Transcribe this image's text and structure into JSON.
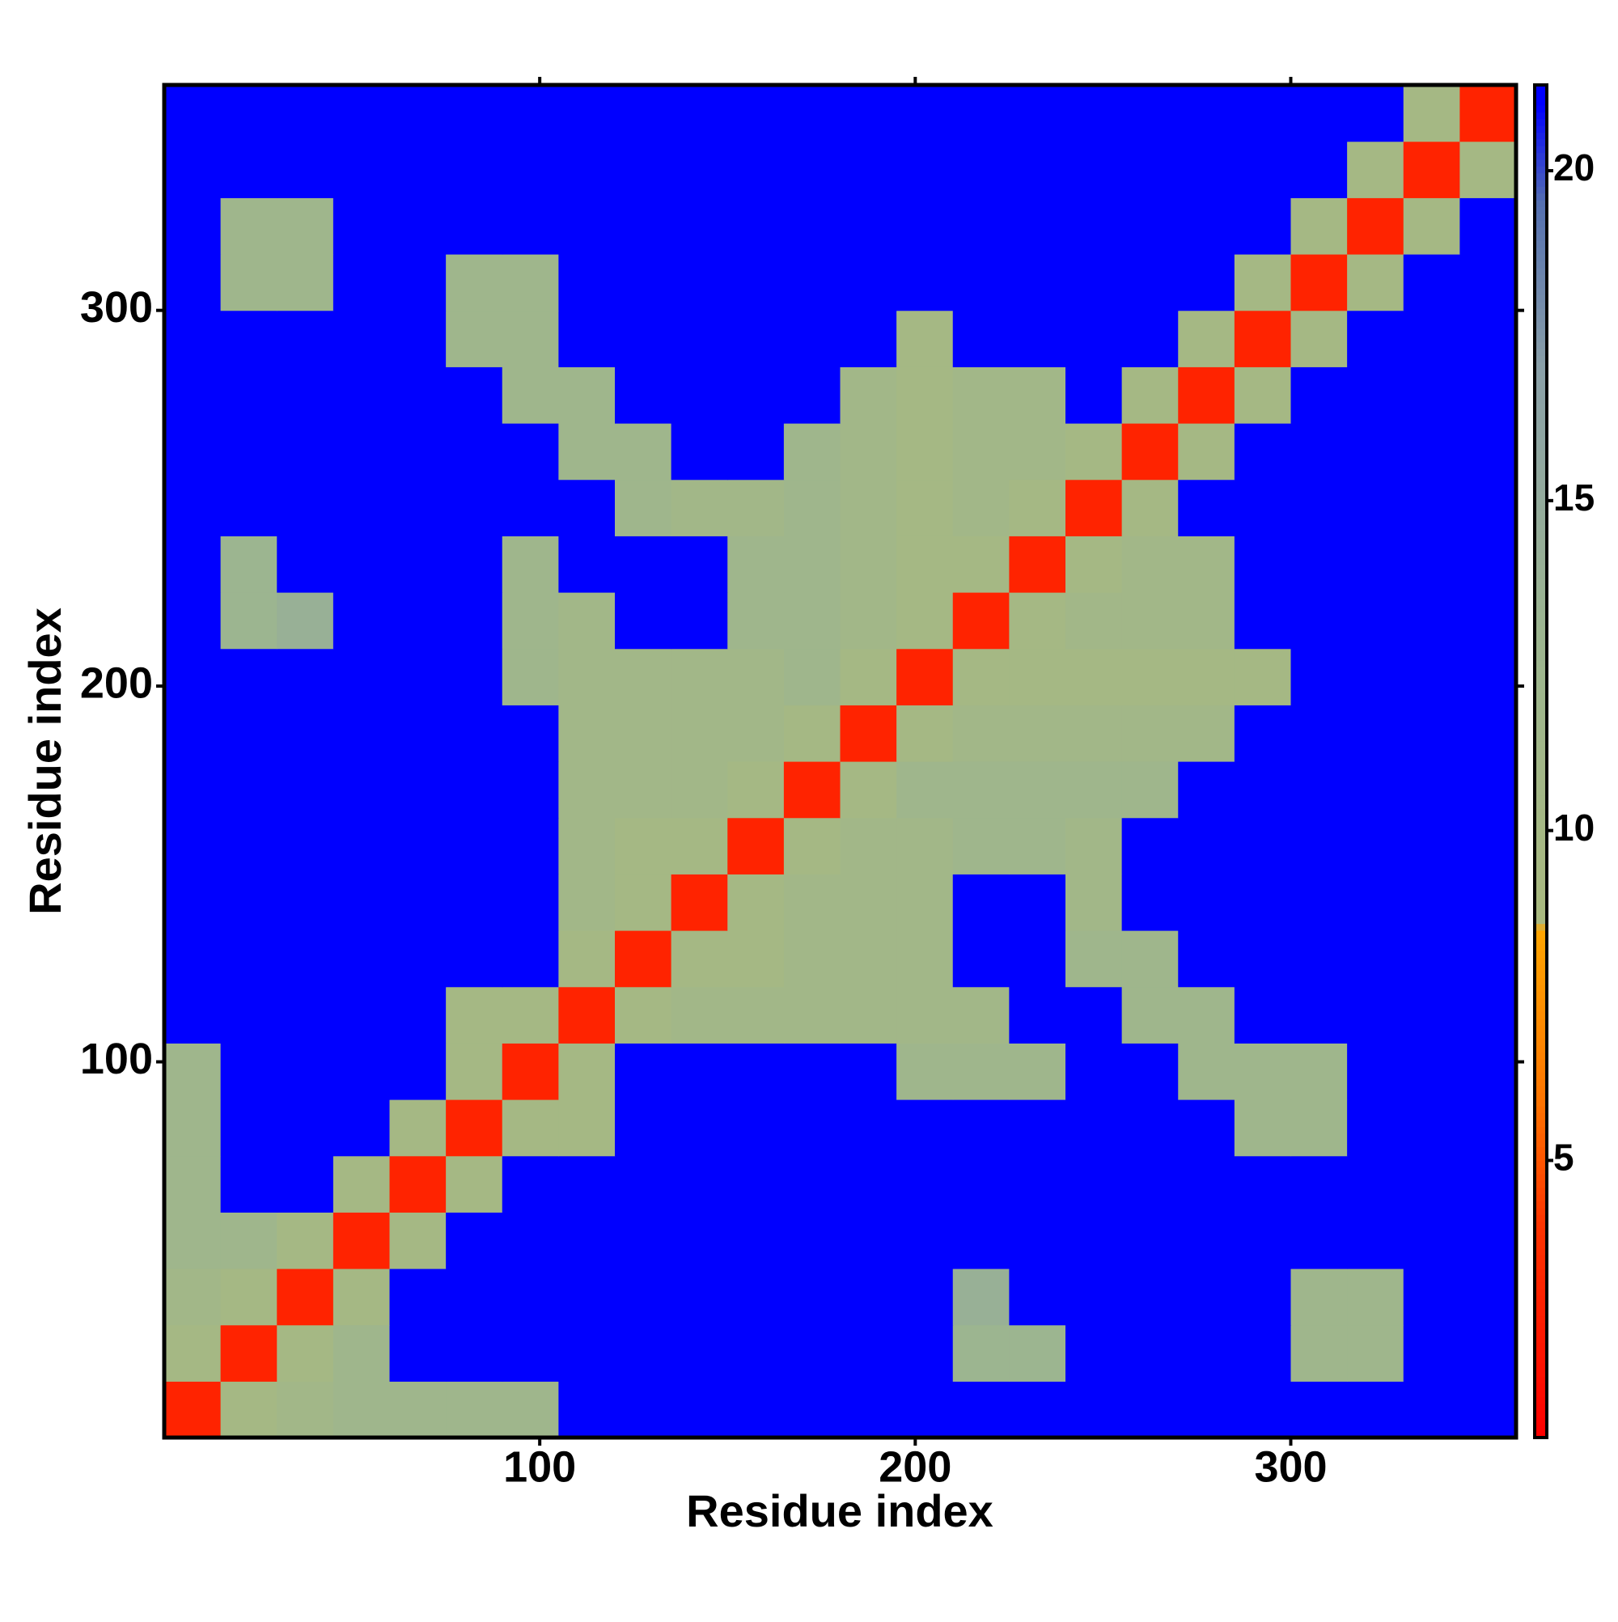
{
  "chart_data": {
    "type": "heatmap",
    "xlabel": "Residue index",
    "ylabel": "Residue index",
    "xlim": [
      0,
      360
    ],
    "ylim": [
      0,
      360
    ],
    "xticks": [
      100,
      200,
      300
    ],
    "yticks": [
      100,
      200,
      300
    ],
    "colorbar": {
      "lim": [
        0.8,
        21.3
      ],
      "ticks": [
        5,
        10,
        15,
        20
      ]
    },
    "colorscale": [
      [
        0.8,
        "#ff0000"
      ],
      [
        4,
        "#ff3300"
      ],
      [
        6,
        "#ff7700"
      ],
      [
        8.5,
        "#ffa500"
      ],
      [
        8.6,
        "#a9b97f"
      ],
      [
        13,
        "#9cb590"
      ],
      [
        17,
        "#8aa0a8"
      ],
      [
        19.5,
        "#5570b0"
      ],
      [
        21,
        "#0000ff"
      ],
      [
        21.3,
        "#0000ff"
      ]
    ],
    "z": [
      [
        3,
        10,
        11,
        12,
        12,
        12,
        12,
        21,
        21,
        21,
        21,
        21,
        21,
        21,
        21,
        21,
        21,
        21,
        21,
        21,
        21,
        21,
        21,
        21
      ],
      [
        10,
        3,
        10,
        12,
        21,
        21,
        21,
        21,
        21,
        21,
        21,
        21,
        21,
        21,
        13,
        13,
        21,
        21,
        21,
        21,
        12,
        12,
        21,
        21
      ],
      [
        11,
        10,
        3,
        10,
        21,
        21,
        21,
        21,
        21,
        21,
        21,
        21,
        21,
        21,
        14,
        21,
        21,
        21,
        21,
        21,
        12,
        12,
        21,
        21
      ],
      [
        12,
        12,
        10,
        3,
        10,
        21,
        21,
        21,
        21,
        21,
        21,
        21,
        21,
        21,
        21,
        21,
        21,
        21,
        21,
        21,
        21,
        21,
        21,
        21
      ],
      [
        12,
        21,
        21,
        10,
        3,
        10,
        21,
        21,
        21,
        21,
        21,
        21,
        21,
        21,
        21,
        21,
        21,
        21,
        21,
        21,
        21,
        21,
        21,
        21
      ],
      [
        12,
        21,
        21,
        21,
        10,
        3,
        10,
        10,
        21,
        21,
        21,
        21,
        21,
        21,
        21,
        21,
        21,
        21,
        21,
        12,
        12,
        21,
        21,
        21
      ],
      [
        12,
        21,
        21,
        21,
        21,
        10,
        3,
        10,
        21,
        21,
        21,
        21,
        21,
        12,
        12,
        12,
        21,
        21,
        12,
        12,
        12,
        21,
        21,
        21
      ],
      [
        21,
        21,
        21,
        21,
        21,
        10,
        10,
        3,
        10,
        11,
        11,
        11,
        11,
        11,
        11,
        21,
        21,
        12,
        12,
        21,
        21,
        21,
        21,
        21
      ],
      [
        21,
        21,
        21,
        21,
        21,
        21,
        21,
        10,
        3,
        10,
        10,
        11,
        11,
        11,
        21,
        21,
        12,
        12,
        21,
        21,
        21,
        21,
        21,
        21
      ],
      [
        21,
        21,
        21,
        21,
        21,
        21,
        21,
        11,
        10,
        3,
        10,
        11,
        11,
        11,
        21,
        21,
        11,
        21,
        21,
        21,
        21,
        21,
        21,
        21
      ],
      [
        21,
        21,
        21,
        21,
        21,
        21,
        21,
        11,
        10,
        10,
        3,
        10,
        11,
        11,
        12,
        12,
        11,
        21,
        21,
        21,
        21,
        21,
        21,
        21
      ],
      [
        21,
        21,
        21,
        21,
        21,
        21,
        21,
        11,
        11,
        11,
        10,
        3,
        10,
        12,
        12,
        12,
        12,
        12,
        21,
        21,
        21,
        21,
        21,
        21
      ],
      [
        21,
        21,
        21,
        21,
        21,
        21,
        21,
        11,
        11,
        11,
        11,
        10,
        3,
        10,
        11,
        11,
        11,
        11,
        11,
        21,
        21,
        21,
        21,
        21
      ],
      [
        21,
        21,
        21,
        21,
        21,
        21,
        12,
        11,
        11,
        11,
        11,
        12,
        10,
        3,
        10,
        10,
        10,
        10,
        10,
        10,
        21,
        21,
        21,
        21
      ],
      [
        21,
        13,
        14,
        21,
        21,
        21,
        12,
        11,
        21,
        21,
        12,
        12,
        11,
        10,
        3,
        10,
        11,
        11,
        11,
        21,
        21,
        21,
        21,
        21
      ],
      [
        21,
        13,
        21,
        21,
        21,
        21,
        12,
        21,
        21,
        21,
        12,
        12,
        11,
        10,
        10,
        3,
        10,
        11,
        11,
        21,
        21,
        21,
        21,
        21
      ],
      [
        21,
        21,
        21,
        21,
        21,
        21,
        21,
        21,
        12,
        11,
        11,
        12,
        11,
        10,
        11,
        10,
        3,
        10,
        21,
        21,
        21,
        21,
        21,
        21
      ],
      [
        21,
        21,
        21,
        21,
        21,
        21,
        21,
        12,
        12,
        21,
        21,
        12,
        11,
        10,
        11,
        11,
        10,
        3,
        10,
        21,
        21,
        21,
        21,
        21
      ],
      [
        21,
        21,
        21,
        21,
        21,
        21,
        12,
        12,
        21,
        21,
        21,
        21,
        11,
        10,
        11,
        11,
        21,
        10,
        3,
        10,
        21,
        21,
        21,
        21
      ],
      [
        21,
        21,
        21,
        21,
        21,
        12,
        12,
        21,
        21,
        21,
        21,
        21,
        21,
        10,
        21,
        21,
        21,
        21,
        10,
        3,
        10,
        21,
        21,
        21
      ],
      [
        21,
        12,
        12,
        21,
        21,
        12,
        12,
        21,
        21,
        21,
        21,
        21,
        21,
        21,
        21,
        21,
        21,
        21,
        21,
        10,
        3,
        10,
        21,
        21
      ],
      [
        21,
        12,
        12,
        21,
        21,
        21,
        21,
        21,
        21,
        21,
        21,
        21,
        21,
        21,
        21,
        21,
        21,
        21,
        21,
        21,
        10,
        3,
        10,
        21
      ],
      [
        21,
        21,
        21,
        21,
        21,
        21,
        21,
        21,
        21,
        21,
        21,
        21,
        21,
        21,
        21,
        21,
        21,
        21,
        21,
        21,
        21,
        10,
        3,
        10
      ],
      [
        21,
        21,
        21,
        21,
        21,
        21,
        21,
        21,
        21,
        21,
        21,
        21,
        21,
        21,
        21,
        21,
        21,
        21,
        21,
        21,
        21,
        21,
        10,
        3
      ]
    ]
  }
}
